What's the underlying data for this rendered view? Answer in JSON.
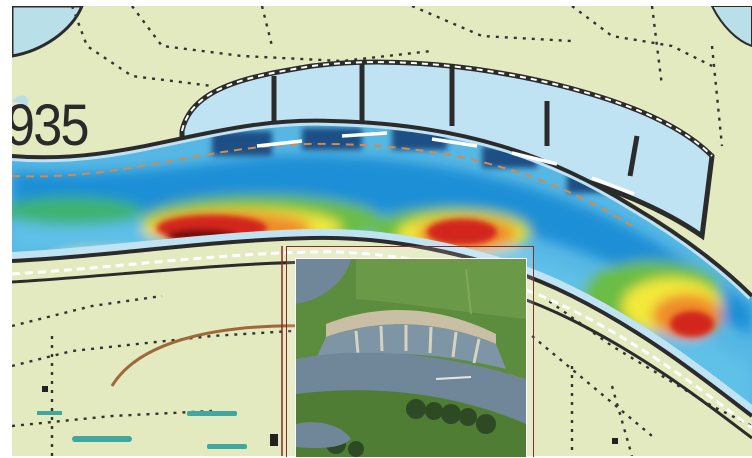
{
  "map": {
    "grid_label": "935",
    "colors": {
      "land": "#e3eac0",
      "water_light": "#cfeaf4",
      "water_mid": "#56b7e4",
      "deep_blue": "#1f4f86",
      "green": "#56b24b",
      "yellow": "#f2e93a",
      "orange": "#f08a2a",
      "red": "#d2261f",
      "dark_red": "#7a1010",
      "outline": "#2b2b2b"
    }
  },
  "inset_photo": {
    "type": "aerial-river-photo",
    "colors": {
      "water": "#6f8799",
      "grass": "#5c8c3e",
      "sand": "#c8bfa4",
      "trees": "#2e4a25"
    }
  }
}
